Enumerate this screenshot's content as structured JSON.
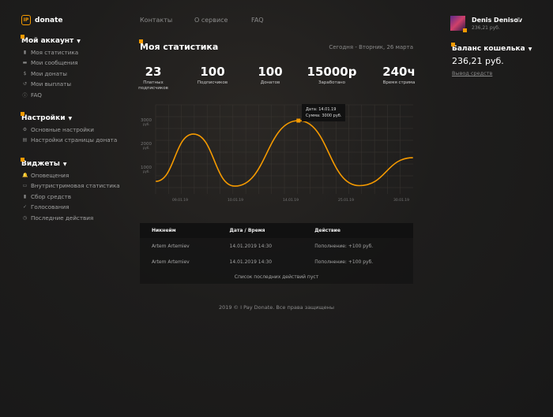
{
  "brand": {
    "logo_text": "IP",
    "name": "donate"
  },
  "nav": [
    "Контакты",
    "О сервисе",
    "FAQ"
  ],
  "user": {
    "name": "Denis Denisov",
    "balance": "236,21 руб."
  },
  "wallet": {
    "title": "Баланс кошелька",
    "amount": "236,21 руб.",
    "withdraw": "Вывод средств"
  },
  "sidebar": [
    {
      "title": "Мой аккаунт",
      "items": [
        {
          "icon": "bar-chart-icon",
          "glyph": "▮",
          "label": "Моя статистика"
        },
        {
          "icon": "message-icon",
          "glyph": "▬",
          "label": "Мои сообщения"
        },
        {
          "icon": "dollar-icon",
          "glyph": "$",
          "label": "Мои донаты"
        },
        {
          "icon": "payout-icon",
          "glyph": "↺",
          "label": "Мои выплаты"
        },
        {
          "icon": "info-icon",
          "glyph": "ⓘ",
          "label": "FAQ"
        }
      ]
    },
    {
      "title": "Настройки",
      "items": [
        {
          "icon": "gear-icon",
          "glyph": "⚙",
          "label": "Основные настройки"
        },
        {
          "icon": "page-icon",
          "glyph": "▤",
          "label": "Настройки страницы доната"
        }
      ]
    },
    {
      "title": "Виджеты",
      "items": [
        {
          "icon": "bell-icon",
          "glyph": "🔔",
          "label": "Оповещения"
        },
        {
          "icon": "monitor-icon",
          "glyph": "▭",
          "label": "Внутристримовая статистика"
        },
        {
          "icon": "fundraise-icon",
          "glyph": "▮",
          "label": "Сбор средств"
        },
        {
          "icon": "check-icon",
          "glyph": "✓",
          "label": "Голосования"
        },
        {
          "icon": "history-icon",
          "glyph": "◷",
          "label": "Последние действия"
        }
      ]
    }
  ],
  "page": {
    "title": "Моя статистика",
    "date": "Сегодня - Вторник, 26 марта"
  },
  "stats": [
    {
      "value": "23",
      "label": "Платных подписчиков"
    },
    {
      "value": "100",
      "label": "Подписчиков"
    },
    {
      "value": "100",
      "label": "Донатов"
    },
    {
      "value": "15000р",
      "label": "Заработано"
    },
    {
      "value": "240ч",
      "label": "Время стрима"
    }
  ],
  "chart_data": {
    "type": "line",
    "x_ticks": [
      "09.01.19",
      "10.01.19",
      "14.01.19",
      "25.01.19",
      "30.01.19"
    ],
    "y_ticks": [
      {
        "value": 1000,
        "label": "1000",
        "unit": "руб."
      },
      {
        "value": 2000,
        "label": "2000",
        "unit": "руб."
      },
      {
        "value": 3000,
        "label": "3000",
        "unit": "руб."
      }
    ],
    "ylim": [
      0,
      3300
    ],
    "grid": true,
    "color": "#f59a00",
    "points": [
      [
        -0.44,
        430
      ],
      [
        0.24,
        2430
      ],
      [
        0.99,
        230
      ],
      [
        2.14,
        3000
      ],
      [
        3.24,
        250
      ],
      [
        4.21,
        1430
      ]
    ],
    "tooltip": {
      "date": "Дата: 14.01.19",
      "sum": "Сумма: 3000 руб."
    }
  },
  "table": {
    "headers": [
      "Никнейм",
      "Дата / Время",
      "Действие"
    ],
    "rows": [
      [
        "Artem Artemiev",
        "14.01.2019 14:30",
        "Пополнение: +100 руб."
      ],
      [
        "Artem Artemiev",
        "14.01.2019 14:30",
        "Пополнение: +100 руб."
      ]
    ],
    "empty": "Список последних действий пуст"
  },
  "footer": "2019 © I Pay Donate. Все права защищены"
}
